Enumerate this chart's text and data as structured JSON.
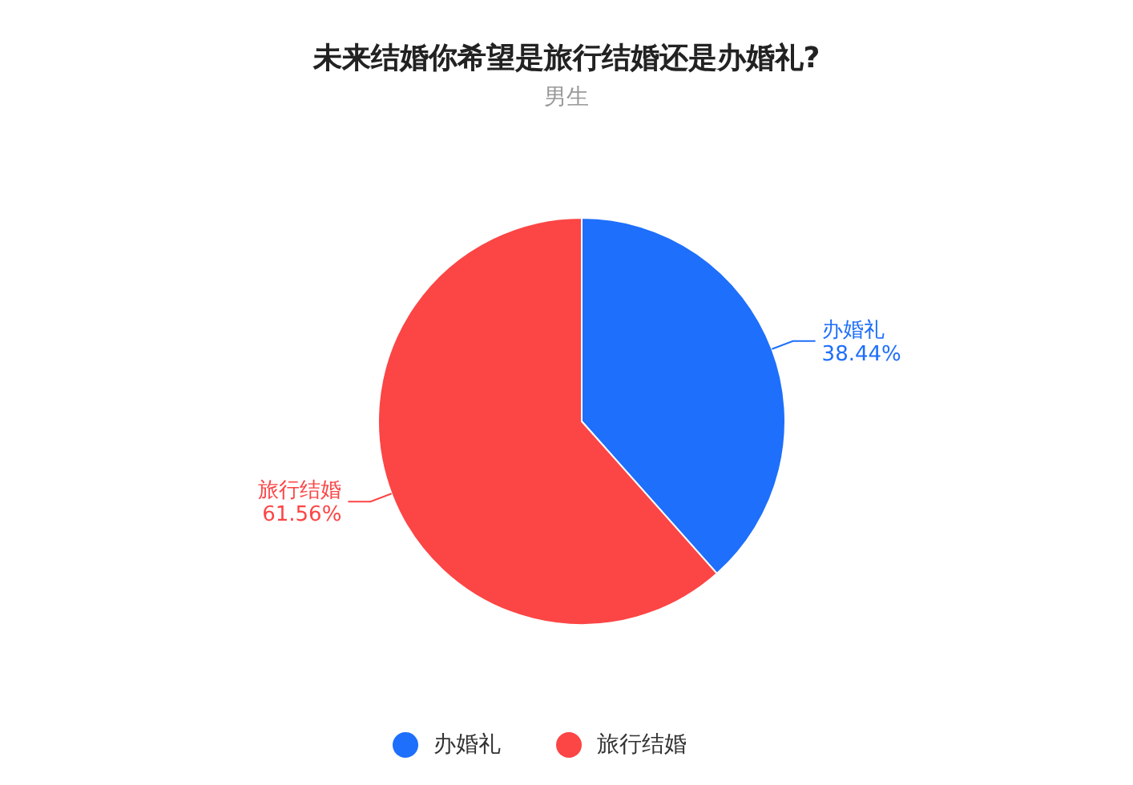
{
  "chart_data": {
    "type": "pie",
    "title": "未来结婚你希望是旅行结婚还是办婚礼?",
    "subtitle": "男生",
    "categories": [
      "办婚礼",
      "旅行结婚"
    ],
    "values": [
      38.44,
      61.56
    ],
    "colors": [
      "#1e6ffb",
      "#fc4545"
    ],
    "value_labels": [
      "38.44%",
      "61.56%"
    ],
    "legend": "bottom"
  }
}
